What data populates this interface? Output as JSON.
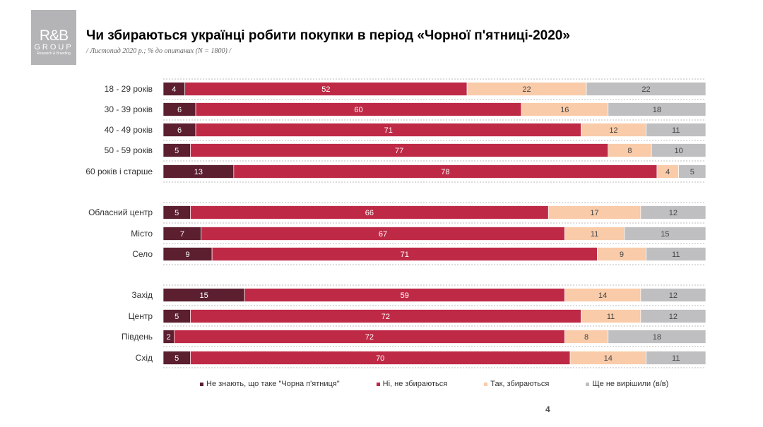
{
  "logo": {
    "line1": "R&B",
    "line2": "GROUP",
    "line3": "Research & Branding"
  },
  "title": "Чи збираються українці робити покупки в період «Чорної п'ятниці-2020»",
  "subtitle": "/ Листопад 2020 р.; % до опитаних (N = 1800) /",
  "page_number": "4",
  "chart_data": {
    "type": "bar",
    "orientation": "horizontal-stacked",
    "xlim": [
      0,
      100
    ],
    "groups": [
      {
        "categories": [
          "18 - 29 років",
          "30 - 39 років",
          "40 - 49 років",
          "50 - 59 років",
          "60 років і старше"
        ]
      },
      {
        "categories": [
          "Обласний центр",
          "Місто",
          "Село"
        ]
      },
      {
        "categories": [
          "Захід",
          "Центр",
          "Південь",
          "Схід"
        ]
      }
    ],
    "categories": [
      "18 - 29 років",
      "30 - 39 років",
      "40 - 49 років",
      "50 - 59 років",
      "60 років і старше",
      "Обласний центр",
      "Місто",
      "Село",
      "Захід",
      "Центр",
      "Південь",
      "Схід"
    ],
    "series": [
      {
        "name": "Не знають, що таке \"Чорна п'ятниця\"",
        "color": "#5b1f30",
        "label_color": "#ffffff",
        "values": [
          4,
          6,
          6,
          5,
          13,
          5,
          7,
          9,
          15,
          5,
          2,
          5
        ]
      },
      {
        "name": "Ні, не збираються",
        "color": "#be2a46",
        "label_color": "#ffffff",
        "values": [
          52,
          60,
          71,
          77,
          78,
          66,
          67,
          71,
          59,
          72,
          72,
          70
        ]
      },
      {
        "name": "Так, збираються",
        "color": "#f9cba9",
        "label_color": "#444444",
        "values": [
          22,
          16,
          12,
          8,
          4,
          17,
          11,
          9,
          14,
          11,
          8,
          14
        ]
      },
      {
        "name": "Ще не вирішили (в/в)",
        "color": "#bfbfc1",
        "label_color": "#444444",
        "values": [
          22,
          18,
          11,
          10,
          5,
          12,
          15,
          11,
          12,
          12,
          18,
          11
        ]
      }
    ],
    "legend": "bottom"
  }
}
